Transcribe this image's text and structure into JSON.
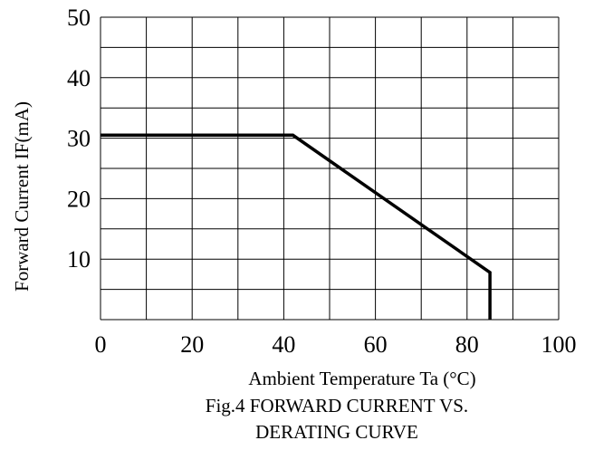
{
  "chart_data": {
    "type": "line",
    "xlabel": "Ambient Temperature Ta (°C)",
    "ylabel": "Forward Current IF(mA)",
    "caption_lines": [
      "Fig.4 FORWARD CURRENT  VS.",
      "DERATING CURVE"
    ],
    "xlim": [
      0,
      100
    ],
    "ylim": [
      0,
      50
    ],
    "x_ticks": [
      0,
      20,
      40,
      60,
      80,
      100
    ],
    "y_ticks": [
      10,
      20,
      30,
      40,
      50
    ],
    "x_grid_step": 10,
    "y_grid_step": 5,
    "grid": true,
    "series": [
      {
        "x": [
          0,
          42,
          85,
          85
        ],
        "y": [
          30.5,
          30.5,
          7.8,
          0
        ]
      }
    ]
  }
}
